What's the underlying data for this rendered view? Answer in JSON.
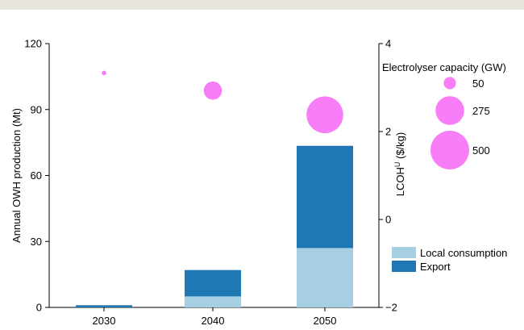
{
  "chart_data": {
    "type": "bar",
    "categories": [
      "2030",
      "2040",
      "2050"
    ],
    "series": [
      {
        "name": "Local consumption",
        "color": "#a6cfe3",
        "values": [
          0,
          5,
          27
        ]
      },
      {
        "name": "Export",
        "color": "#1f77b4",
        "values": [
          1,
          12,
          46.5
        ]
      }
    ],
    "stacked": true,
    "ylabel": "Annual OWH production (Mt)",
    "ylim": [
      0,
      120
    ],
    "yticks": [
      "0",
      "30",
      "60",
      "90",
      "120"
    ],
    "y2label_main": "LCOH",
    "y2label_sup": "U",
    "y2label_unit": " ($/kg)",
    "y2lim": [
      -2,
      4
    ],
    "y2ticks": [
      "−2",
      "0",
      "2",
      "4"
    ],
    "bubble_series": {
      "color": "#f77ef7",
      "points": [
        {
          "category": "2030",
          "lcoh": 3.33,
          "capacity_gw": 7
        },
        {
          "category": "2040",
          "lcoh": 2.93,
          "capacity_gw": 110
        },
        {
          "category": "2050",
          "lcoh": 2.38,
          "capacity_gw": 450
        }
      ]
    },
    "bubble_legend": {
      "title": "Electrolyser capacity (GW)",
      "sizes": [
        {
          "label": "50",
          "value": 50
        },
        {
          "label": "275",
          "value": 275
        },
        {
          "label": "500",
          "value": 500
        }
      ]
    },
    "legend_position": "bottom-right",
    "grid": false
  }
}
